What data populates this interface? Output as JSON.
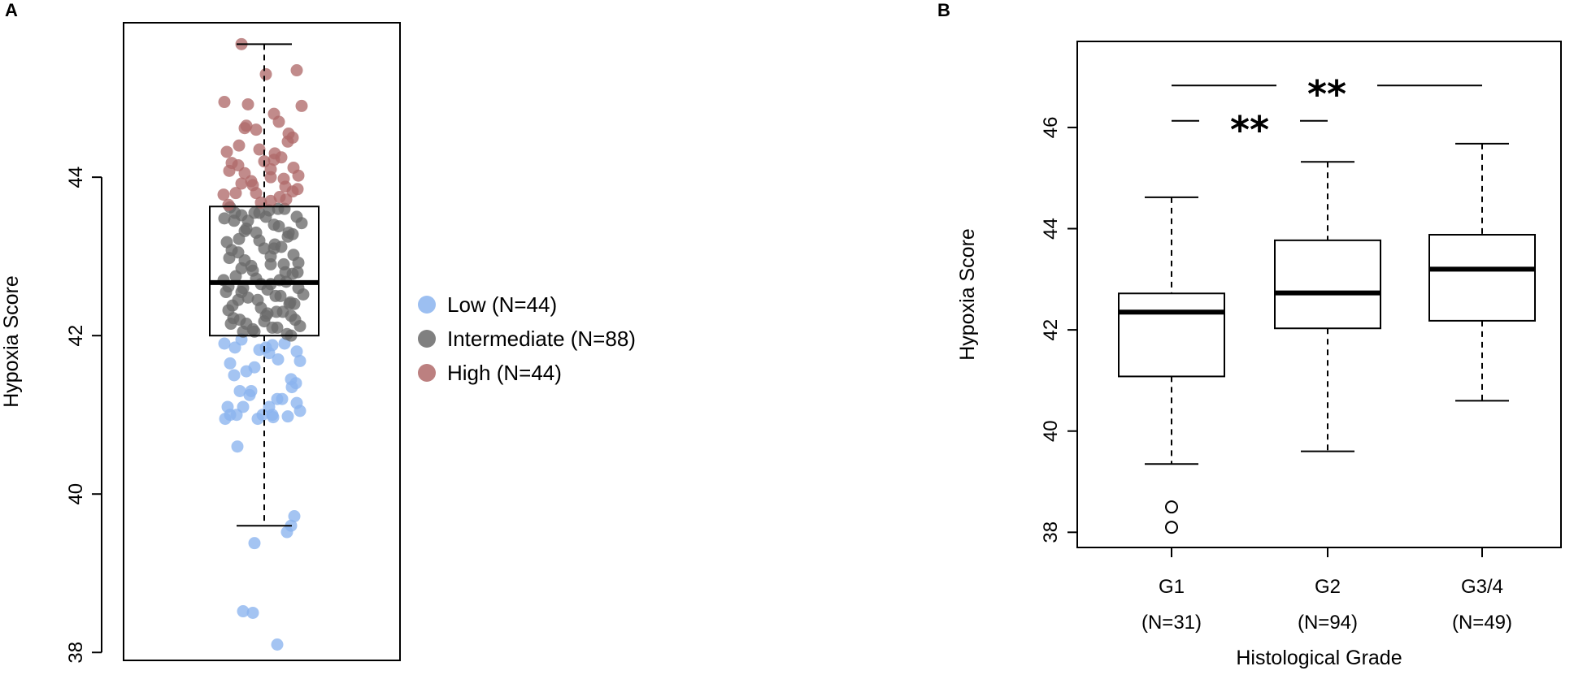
{
  "chart_data": [
    {
      "panel": "A",
      "type": "scatter",
      "ylabel": "Hypoxia Score",
      "ylim": [
        37.9,
        45.95
      ],
      "yticks": [
        38,
        40,
        42,
        44
      ],
      "box": {
        "min": 39.6,
        "q1": 42.0,
        "median": 42.67,
        "q3": 43.63,
        "max": 45.68
      },
      "legend_position": "right",
      "series": [
        {
          "name": "Low (N=44)",
          "color": "#8bb4ee",
          "values": [
            41.9,
            41.85,
            41.8,
            41.95,
            41.85,
            41.82,
            41.78,
            41.9,
            41.7,
            41.65,
            41.6,
            41.5,
            41.45,
            41.4,
            41.35,
            41.3,
            41.3,
            41.25,
            41.2,
            41.2,
            41.15,
            41.1,
            41.1,
            41.1,
            41.05,
            41.0,
            41.0,
            41.0,
            41.0,
            40.98,
            40.97,
            40.95,
            40.95,
            40.6,
            39.72,
            39.6,
            39.52,
            39.38,
            38.52,
            38.5,
            38.1,
            41.88,
            41.68,
            41.55
          ]
        },
        {
          "name": "Intermediate (N=88)",
          "color": "#6a6a6a",
          "values": [
            42.0,
            42.02,
            42.05,
            42.05,
            42.08,
            42.1,
            42.1,
            42.12,
            42.15,
            42.15,
            42.18,
            42.2,
            42.2,
            42.22,
            42.25,
            42.28,
            42.3,
            42.3,
            42.32,
            42.35,
            42.38,
            42.4,
            42.4,
            42.42,
            42.45,
            42.45,
            42.48,
            42.5,
            42.5,
            42.52,
            42.55,
            42.55,
            42.58,
            42.6,
            42.6,
            42.62,
            42.65,
            42.65,
            42.68,
            42.7,
            42.7,
            42.72,
            42.75,
            42.78,
            42.8,
            42.8,
            42.82,
            42.85,
            42.88,
            42.9,
            42.9,
            42.92,
            42.95,
            42.98,
            43.0,
            43.02,
            43.05,
            43.08,
            43.1,
            43.1,
            43.12,
            43.15,
            43.18,
            43.2,
            43.22,
            43.25,
            43.28,
            43.3,
            43.3,
            43.32,
            43.35,
            43.38,
            43.4,
            43.42,
            43.45,
            43.48,
            43.5,
            43.5,
            43.52,
            43.55,
            43.55,
            43.58,
            43.6,
            43.6,
            43.62,
            43.55,
            43.45,
            42.25
          ]
        },
        {
          "name": "High (N=44)",
          "color": "#b06a6a",
          "values": [
            43.65,
            43.68,
            43.7,
            43.72,
            43.75,
            43.78,
            43.8,
            43.8,
            43.82,
            43.85,
            43.88,
            43.9,
            43.92,
            43.95,
            43.98,
            44.0,
            44.02,
            44.05,
            44.08,
            44.1,
            44.12,
            44.15,
            44.18,
            44.2,
            44.22,
            44.25,
            44.3,
            44.32,
            44.35,
            44.4,
            44.45,
            44.5,
            44.55,
            44.6,
            44.62,
            44.65,
            44.7,
            44.8,
            44.9,
            44.92,
            44.95,
            45.3,
            45.35,
            45.68
          ]
        }
      ]
    },
    {
      "panel": "B",
      "type": "box",
      "xlabel": "Histological Grade",
      "ylabel": "Hypoxia Score",
      "ylim": [
        37.7,
        47.7
      ],
      "yticks": [
        38,
        40,
        42,
        44,
        46
      ],
      "categories": [
        {
          "label": "G1",
          "n_label": "(N=31)",
          "min": 39.35,
          "q1": 41.08,
          "median": 42.35,
          "q3": 42.72,
          "max": 44.62,
          "outliers": [
            38.1,
            38.5
          ]
        },
        {
          "label": "G2",
          "n_label": "(N=94)",
          "min": 39.6,
          "q1": 42.03,
          "median": 42.73,
          "q3": 43.77,
          "max": 45.32,
          "outliers": []
        },
        {
          "label": "G3/4",
          "n_label": "(N=49)",
          "min": 40.6,
          "q1": 42.18,
          "median": 43.2,
          "q3": 43.88,
          "max": 45.68,
          "outliers": []
        }
      ],
      "significance": [
        {
          "from": "G1",
          "to": "G2",
          "y": 46.13,
          "label": "**"
        },
        {
          "from": "G1",
          "to": "G3/4",
          "y": 46.83,
          "label": "**"
        }
      ]
    }
  ],
  "labels": {
    "panel_a": "A",
    "panel_b": "B"
  }
}
